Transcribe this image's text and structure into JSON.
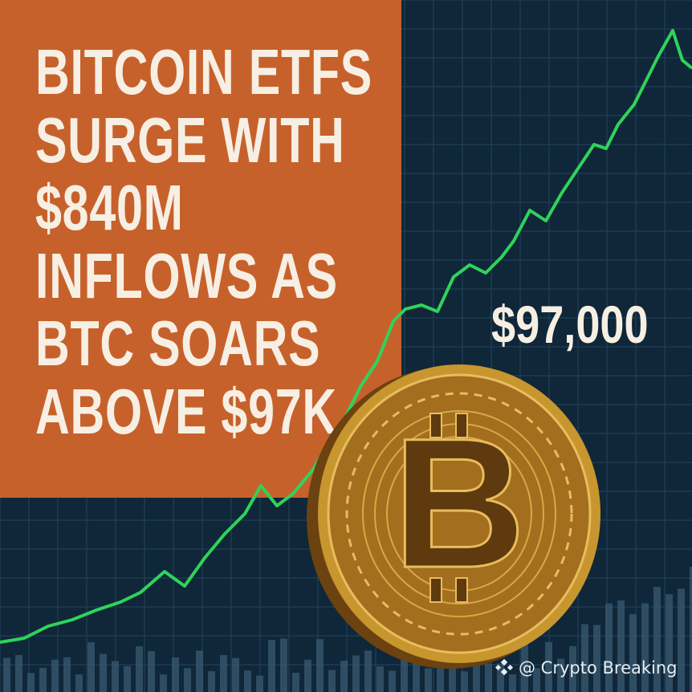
{
  "headline": {
    "lines": [
      "BITCOIN ETFS",
      "SURGE WITH",
      "$840M",
      "INFLOWS AS",
      "BTC SOARS",
      "ABOVE $97K"
    ]
  },
  "price_label": "$97,000",
  "credit": {
    "icon": "binance-diamond-icon",
    "text": "@ Crypto Breaking"
  },
  "colors": {
    "background": "#0f2738",
    "panel": "#c7612b",
    "text": "#f7efe3",
    "trend_line": "#2fd35a",
    "coin": "#c8962e"
  }
}
